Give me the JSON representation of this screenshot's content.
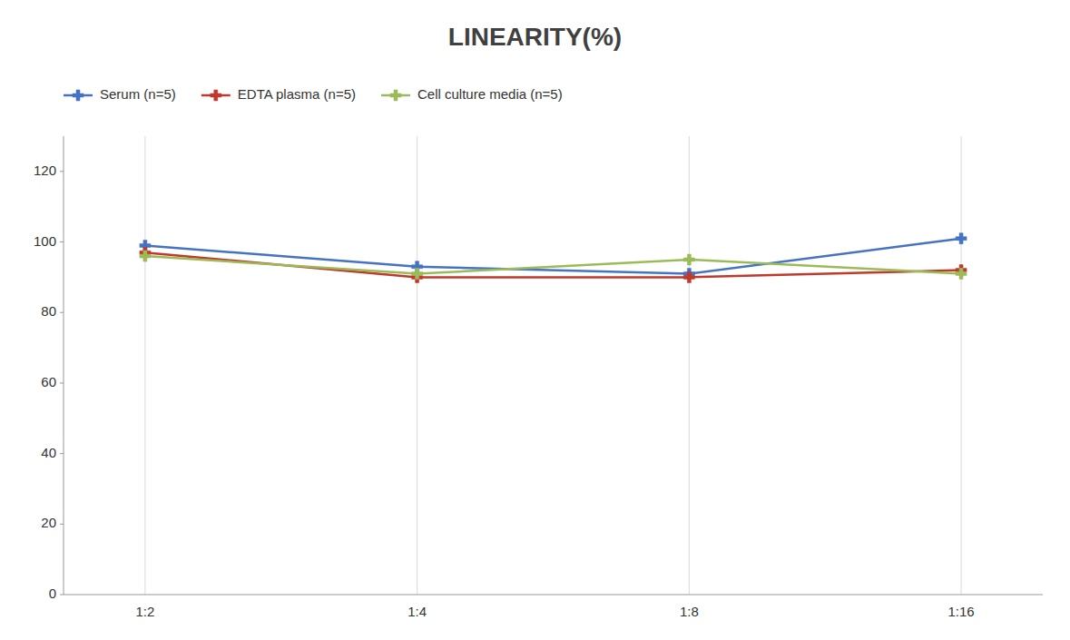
{
  "chart_data": {
    "type": "line",
    "title": "LINEARITY(%)",
    "categories": [
      "1:2",
      "1:4",
      "1:8",
      "1:16"
    ],
    "series": [
      {
        "name": "Serum (n=5)",
        "color": "#4472C4",
        "marker": "plus",
        "values": [
          99,
          93,
          91,
          101
        ]
      },
      {
        "name": "EDTA plasma (n=5)",
        "color": "#C0392B",
        "marker": "plus",
        "values": [
          97,
          90,
          90,
          92
        ]
      },
      {
        "name": "Cell culture media (n=5)",
        "color": "#9BBB59",
        "marker": "plus",
        "values": [
          96,
          91,
          95,
          91
        ]
      }
    ],
    "ylim": [
      0,
      130
    ],
    "yticks": [
      0,
      20,
      40,
      60,
      80,
      100,
      120
    ],
    "grid": "x",
    "legend": "top"
  }
}
